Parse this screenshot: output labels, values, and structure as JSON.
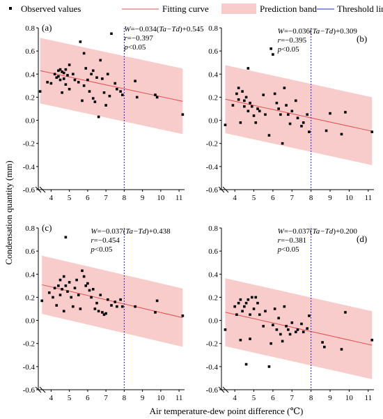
{
  "legend": {
    "observed": "Observed values",
    "fit": "Fitting curve",
    "band": "Prediction band",
    "threshold": "Threshold line"
  },
  "ylabel": "Condensation quantity (mm)",
  "xlabel": "Air temperature-dew point difference (℃)",
  "colors": {
    "fit": "#e05050",
    "band": "#f9cccc",
    "threshold": "#2222cc",
    "points": "#000000"
  },
  "chart_data": [
    {
      "type": "scatter",
      "panel": "(a)",
      "xlim": [
        3.3,
        11.3
      ],
      "ylim": [
        -0.6,
        0.8
      ],
      "xticks": [
        "4",
        "5",
        "6",
        "7",
        "8",
        "9",
        "10",
        "11"
      ],
      "yticks": [
        "-0.6",
        "-0.4",
        "-0.2",
        "0.0",
        "0.2",
        "0.4",
        "0.6",
        "0.8"
      ],
      "threshold": 8,
      "fit": {
        "slope": -0.034,
        "intercept": 0.545
      },
      "band_halfwidth": 0.27,
      "equation": {
        "prefix": "W=−0.034(",
        "var": "Ta−Td",
        "suffix": ")+0.545",
        "r": "r=−0.397",
        "p": "p<0.05"
      },
      "points": [
        [
          3.4,
          0.25
        ],
        [
          3.8,
          0.33
        ],
        [
          4.0,
          0.32
        ],
        [
          4.2,
          0.4
        ],
        [
          4.3,
          0.37
        ],
        [
          4.4,
          0.43
        ],
        [
          4.4,
          0.38
        ],
        [
          4.5,
          0.44
        ],
        [
          4.5,
          0.35
        ],
        [
          4.6,
          0.42
        ],
        [
          4.6,
          0.24
        ],
        [
          4.7,
          0.41
        ],
        [
          4.7,
          0.36
        ],
        [
          4.8,
          0.44
        ],
        [
          4.8,
          0.31
        ],
        [
          4.9,
          0.39
        ],
        [
          5.0,
          0.48
        ],
        [
          5.0,
          0.27
        ],
        [
          5.2,
          0.4
        ],
        [
          5.3,
          0.35
        ],
        [
          5.5,
          0.33
        ],
        [
          5.6,
          0.68
        ],
        [
          5.7,
          0.17
        ],
        [
          5.8,
          0.58
        ],
        [
          5.8,
          0.3
        ],
        [
          5.9,
          0.45
        ],
        [
          6.0,
          0.35
        ],
        [
          6.1,
          0.25
        ],
        [
          6.2,
          0.4
        ],
        [
          6.3,
          0.43
        ],
        [
          6.3,
          0.19
        ],
        [
          6.4,
          0.16
        ],
        [
          6.5,
          0.37
        ],
        [
          6.6,
          0.03
        ],
        [
          6.7,
          0.52
        ],
        [
          6.8,
          0.36
        ],
        [
          6.9,
          0.24
        ],
        [
          7.0,
          0.13
        ],
        [
          7.1,
          0.4
        ],
        [
          7.2,
          0.21
        ],
        [
          7.3,
          0.75
        ],
        [
          7.5,
          0.32
        ],
        [
          7.6,
          0.27
        ],
        [
          7.8,
          0.25
        ],
        [
          7.9,
          0.22
        ],
        [
          8.6,
          0.34
        ],
        [
          8.7,
          0.2
        ],
        [
          9.7,
          0.22
        ],
        [
          9.8,
          0.2
        ],
        [
          11.2,
          0.05
        ]
      ]
    },
    {
      "type": "scatter",
      "panel": "(b)",
      "xlim": [
        3.3,
        11.3
      ],
      "ylim": [
        -0.6,
        0.8
      ],
      "xticks": [
        "4",
        "5",
        "6",
        "7",
        "8",
        "9",
        "10",
        "11"
      ],
      "yticks": [
        "-0.6",
        "-0.4",
        "-0.2",
        "0.0",
        "0.2",
        "0.4",
        "0.6",
        "0.8"
      ],
      "threshold": 8,
      "fit": {
        "slope": -0.036,
        "intercept": 0.309
      },
      "band_halfwidth": 0.28,
      "equation": {
        "prefix": "W=−0.036(",
        "var": "Ta−Td",
        "suffix": ")+0.309",
        "r": "r=−0.395",
        "p": "p<0.05"
      },
      "points": [
        [
          3.5,
          -0.04
        ],
        [
          3.9,
          0.13
        ],
        [
          4.1,
          0.23
        ],
        [
          4.2,
          0.28
        ],
        [
          4.2,
          0.18
        ],
        [
          4.3,
          -0.02
        ],
        [
          4.4,
          0.25
        ],
        [
          4.5,
          0.17
        ],
        [
          4.5,
          0.12
        ],
        [
          4.6,
          0.2
        ],
        [
          4.7,
          0.45
        ],
        [
          4.7,
          0.08
        ],
        [
          4.8,
          0.15
        ],
        [
          4.9,
          0.12
        ],
        [
          5.0,
          0.04
        ],
        [
          5.1,
          -0.02
        ],
        [
          5.2,
          0.1
        ],
        [
          5.3,
          0.08
        ],
        [
          5.5,
          0.22
        ],
        [
          5.6,
          0.05
        ],
        [
          5.8,
          -0.13
        ],
        [
          5.9,
          0.62
        ],
        [
          6.0,
          0.57
        ],
        [
          6.1,
          0.23
        ],
        [
          6.2,
          0.15
        ],
        [
          6.3,
          0.1
        ],
        [
          6.4,
          0.05
        ],
        [
          6.5,
          -0.2
        ],
        [
          6.6,
          0.28
        ],
        [
          6.7,
          0.13
        ],
        [
          6.8,
          0.05
        ],
        [
          6.9,
          -0.03
        ],
        [
          7.0,
          0.08
        ],
        [
          7.2,
          0.17
        ],
        [
          7.3,
          0.02
        ],
        [
          7.5,
          -0.05
        ],
        [
          7.6,
          -0.02
        ],
        [
          7.8,
          0.05
        ],
        [
          7.9,
          -0.1
        ],
        [
          8.8,
          -0.09
        ],
        [
          9.0,
          0.06
        ],
        [
          9.6,
          -0.12
        ],
        [
          9.8,
          0.07
        ],
        [
          11.2,
          -0.1
        ]
      ]
    },
    {
      "type": "scatter",
      "panel": "(c)",
      "xlim": [
        3.3,
        11.3
      ],
      "ylim": [
        -0.6,
        0.8
      ],
      "xticks": [
        "4",
        "5",
        "6",
        "7",
        "8",
        "9",
        "10",
        "11"
      ],
      "yticks": [
        "-0.6",
        "-0.4",
        "-0.2",
        "0.0",
        "0.2",
        "0.4",
        "0.6",
        "0.8"
      ],
      "threshold": 8,
      "fit": {
        "slope": -0.037,
        "intercept": 0.438
      },
      "band_halfwidth": 0.24,
      "equation": {
        "prefix": "W=−0.037(",
        "var": "Ta−Td",
        "suffix": ")+0.438",
        "r": "r=−0.454",
        "p": "p<0.05"
      },
      "points": [
        [
          3.5,
          0.17
        ],
        [
          3.9,
          0.24
        ],
        [
          4.1,
          0.2
        ],
        [
          4.2,
          0.28
        ],
        [
          4.3,
          0.13
        ],
        [
          4.4,
          0.3
        ],
        [
          4.5,
          0.22
        ],
        [
          4.5,
          0.35
        ],
        [
          4.6,
          0.27
        ],
        [
          4.7,
          0.38
        ],
        [
          4.7,
          0.08
        ],
        [
          4.8,
          0.72
        ],
        [
          4.8,
          0.3
        ],
        [
          4.9,
          0.25
        ],
        [
          5.0,
          0.33
        ],
        [
          5.1,
          0.2
        ],
        [
          5.2,
          0.12
        ],
        [
          5.3,
          0.28
        ],
        [
          5.4,
          0.35
        ],
        [
          5.5,
          0.22
        ],
        [
          5.6,
          0.1
        ],
        [
          5.7,
          0.43
        ],
        [
          5.8,
          0.38
        ],
        [
          5.9,
          0.3
        ],
        [
          6.0,
          0.32
        ],
        [
          6.1,
          0.26
        ],
        [
          6.2,
          0.2
        ],
        [
          6.3,
          0.27
        ],
        [
          6.4,
          0.1
        ],
        [
          6.5,
          0.15
        ],
        [
          6.6,
          0.08
        ],
        [
          6.7,
          0.22
        ],
        [
          6.8,
          0.07
        ],
        [
          6.9,
          0.05
        ],
        [
          7.0,
          0.06
        ],
        [
          7.1,
          0.18
        ],
        [
          7.3,
          0.13
        ],
        [
          7.5,
          0.16
        ],
        [
          7.6,
          0.12
        ],
        [
          7.8,
          0.18
        ],
        [
          7.9,
          0.12
        ],
        [
          8.6,
          0.12
        ],
        [
          9.7,
          0.07
        ],
        [
          9.8,
          0.17
        ],
        [
          11.2,
          0.04
        ]
      ]
    },
    {
      "type": "scatter",
      "panel": "(d)",
      "xlim": [
        3.3,
        11.3
      ],
      "ylim": [
        -0.6,
        0.8
      ],
      "xticks": [
        "4",
        "5",
        "6",
        "7",
        "8",
        "9",
        "10",
        "11"
      ],
      "yticks": [
        "-0.6",
        "-0.4",
        "-0.2",
        "0.0",
        "0.2",
        "0.4",
        "0.6",
        "0.8"
      ],
      "threshold": 8,
      "fit": {
        "slope": -0.037,
        "intercept": 0.2
      },
      "band_halfwidth": 0.28,
      "equation": {
        "prefix": "W=−0.037(",
        "var": "Ta−Td",
        "suffix": ")+0.200",
        "r": "r=−0.381",
        "p": "p<0.05"
      },
      "points": [
        [
          3.5,
          -0.08
        ],
        [
          4.0,
          0.12
        ],
        [
          4.1,
          0.05
        ],
        [
          4.2,
          0.15
        ],
        [
          4.3,
          -0.17
        ],
        [
          4.3,
          0.18
        ],
        [
          4.4,
          0.08
        ],
        [
          4.5,
          0.12
        ],
        [
          4.6,
          -0.38
        ],
        [
          4.6,
          0.15
        ],
        [
          4.7,
          0.18
        ],
        [
          4.8,
          0.05
        ],
        [
          4.8,
          -0.16
        ],
        [
          4.9,
          0.2
        ],
        [
          5.0,
          0.1
        ],
        [
          5.1,
          0.2
        ],
        [
          5.2,
          0.15
        ],
        [
          5.3,
          0.05
        ],
        [
          5.5,
          -0.05
        ],
        [
          5.6,
          0.08
        ],
        [
          5.8,
          -0.4
        ],
        [
          5.9,
          -0.2
        ],
        [
          6.0,
          -0.04
        ],
        [
          6.1,
          0.1
        ],
        [
          6.2,
          -0.08
        ],
        [
          6.3,
          0.02
        ],
        [
          6.4,
          -0.12
        ],
        [
          6.5,
          -0.18
        ],
        [
          6.6,
          0.12
        ],
        [
          6.7,
          -0.05
        ],
        [
          6.8,
          -0.08
        ],
        [
          6.9,
          -0.12
        ],
        [
          7.0,
          -0.02
        ],
        [
          7.2,
          -0.1
        ],
        [
          7.3,
          -0.08
        ],
        [
          7.5,
          -0.03
        ],
        [
          7.6,
          -0.1
        ],
        [
          7.8,
          -0.07
        ],
        [
          7.9,
          0.04
        ],
        [
          8.6,
          -0.19
        ],
        [
          8.7,
          -0.23
        ],
        [
          9.6,
          -0.25
        ],
        [
          9.8,
          0.07
        ],
        [
          11.2,
          -0.17
        ]
      ]
    }
  ]
}
